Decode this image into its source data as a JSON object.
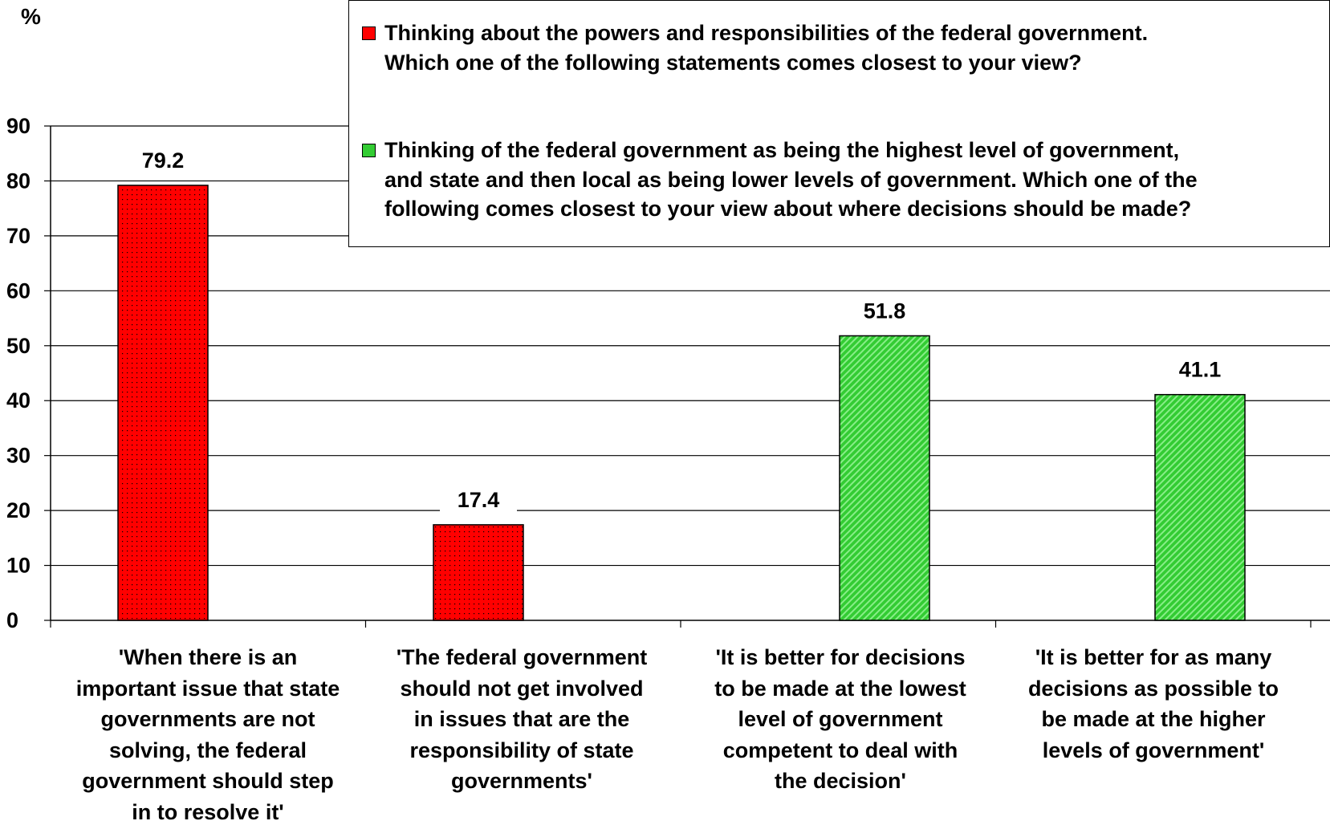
{
  "chart_data": {
    "type": "bar",
    "ylabel": "%",
    "ylim": [
      0,
      90
    ],
    "yticks": [
      0,
      10,
      20,
      30,
      40,
      50,
      60,
      70,
      80,
      90
    ],
    "categories": [
      "'When there is an important issue that state governments are not solving, the federal government should step in to resolve it'",
      "'The federal government should not get involved in issues that are the responsibility of state governments'",
      "'It is better for decisions to be made at the lowest level of government competent to deal with the decision'",
      "'It is better for as many decisions as possible to be made at the higher levels of government'"
    ],
    "category_lines": [
      [
        "'When there is an",
        "important issue that state",
        "governments are not",
        "solving, the federal",
        "government should step",
        "in to resolve it'"
      ],
      [
        "'The federal government",
        "should not get involved",
        "in issues that are the",
        "responsibility of state",
        "governments'"
      ],
      [
        "'It is better for decisions",
        "to be made at the lowest",
        "level of government",
        "competent to deal with",
        "the decision'"
      ],
      [
        "'It is better for as many",
        "decisions as possible to",
        "be made at the higher",
        "levels of government'"
      ]
    ],
    "series": [
      {
        "name": "Thinking about the powers and responsibilities of the federal government. Which one of the following statements comes closest to your view?",
        "name_lines": [
          "Thinking about the powers and responsibilities of the federal government.",
          "Which one of the following statements comes closest to your view?"
        ],
        "color": "#ff0000",
        "values": [
          79.2,
          17.4,
          null,
          null
        ]
      },
      {
        "name": "Thinking of the federal government as being the highest level of government, and state and then local as being lower levels of government. Which one of the following comes closest to your view about where decisions should be made?",
        "name_lines": [
          "Thinking of the federal government as being the highest level of government,",
          "and state and then local as being lower levels of government.  Which one of the",
          "following comes closest to your view about where decisions should be made?"
        ],
        "color": "#33cc33",
        "values": [
          null,
          null,
          51.8,
          41.1
        ]
      }
    ],
    "data_labels": [
      "79.2",
      "17.4",
      "51.8",
      "41.1"
    ],
    "grid": true,
    "legend_position": "top-right"
  }
}
